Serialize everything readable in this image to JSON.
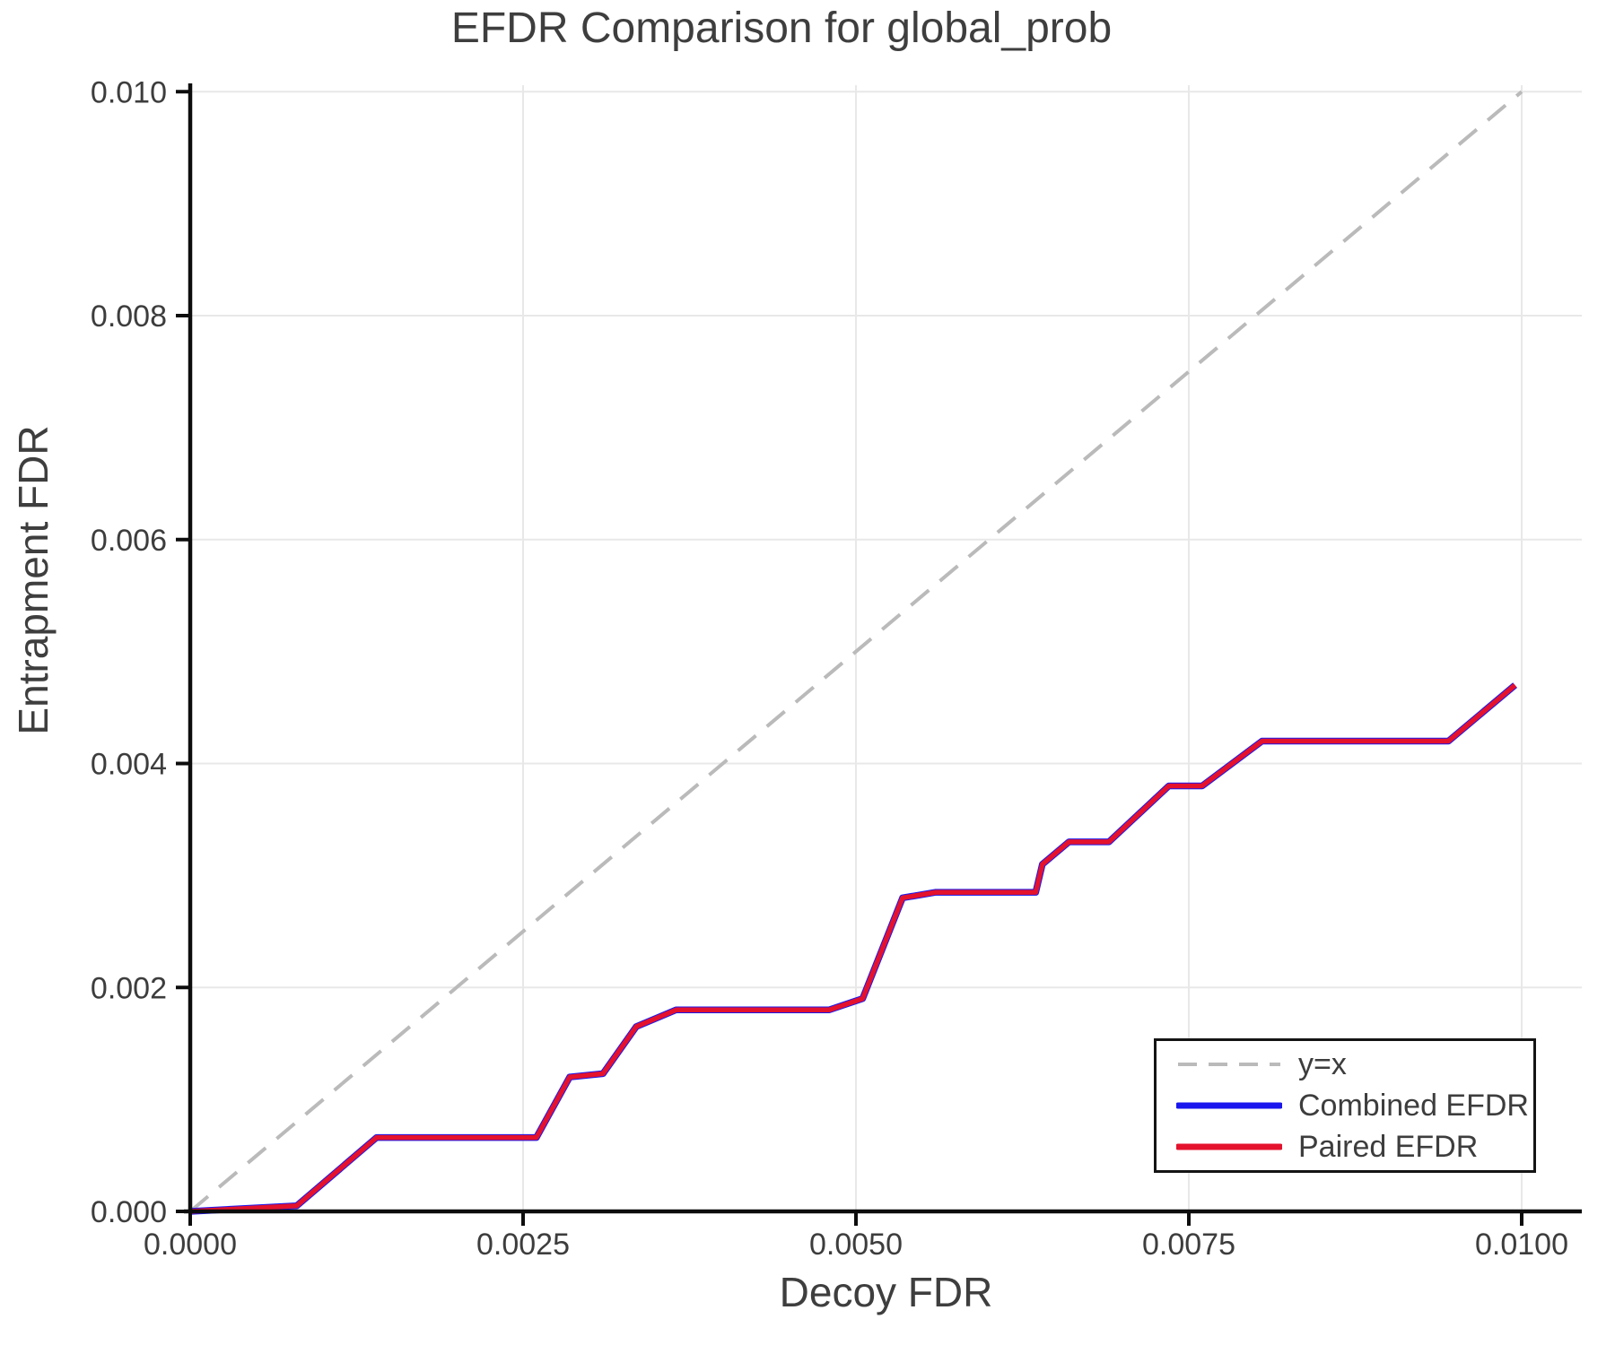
{
  "chart_data": {
    "type": "line",
    "title": "EFDR Comparison for global_prob",
    "xlabel": "Decoy FDR",
    "ylabel": "Entrapment FDR",
    "xlim": [
      0.0,
      0.0104
    ],
    "ylim": [
      0.0,
      0.0101
    ],
    "grid": true,
    "legend_position": "lower right",
    "x_ticks": [
      0.0,
      0.0025,
      0.005,
      0.0075,
      0.01
    ],
    "x_tick_labels": [
      "0.0000",
      "0.0025",
      "0.0050",
      "0.0075",
      "0.0100"
    ],
    "y_ticks": [
      0.0,
      0.002,
      0.004,
      0.006,
      0.008,
      0.01
    ],
    "y_tick_labels": [
      "0.000",
      "0.002",
      "0.004",
      "0.006",
      "0.008",
      "0.010"
    ],
    "colors": {
      "grid": "#e8e8e8",
      "axis": "#0d0d0d",
      "tick_text": "#3d3d3d",
      "reference_gray": "#bababa",
      "combined_blue": "#1a17ee",
      "paired_red": "#e4122d"
    },
    "series": [
      {
        "name": "y=x",
        "style": "dashed",
        "color": "#bababa",
        "x": [
          0.0,
          0.01
        ],
        "y": [
          0.0,
          0.01
        ]
      },
      {
        "name": "Combined EFDR",
        "style": "solid",
        "color": "#1a17ee",
        "x": [
          0.0,
          0.0008,
          0.0014,
          0.0026,
          0.00285,
          0.0031,
          0.00335,
          0.00365,
          0.0048,
          0.00505,
          0.00535,
          0.0056,
          0.00635,
          0.0064,
          0.0066,
          0.0069,
          0.00735,
          0.0076,
          0.00805,
          0.00945,
          0.00995
        ],
        "y": [
          0.0,
          5e-05,
          0.00066,
          0.00066,
          0.0012,
          0.00123,
          0.00165,
          0.0018,
          0.0018,
          0.0019,
          0.0028,
          0.00285,
          0.00285,
          0.0031,
          0.0033,
          0.0033,
          0.0038,
          0.0038,
          0.0042,
          0.0042,
          0.0047
        ]
      },
      {
        "name": "Paired EFDR",
        "style": "solid",
        "color": "#e4122d",
        "x": [
          0.0,
          0.0008,
          0.0014,
          0.0026,
          0.00285,
          0.0031,
          0.00335,
          0.00365,
          0.0048,
          0.00505,
          0.00535,
          0.0056,
          0.00635,
          0.0064,
          0.0066,
          0.0069,
          0.00735,
          0.0076,
          0.00805,
          0.00945,
          0.00995
        ],
        "y": [
          0.0,
          5e-05,
          0.00066,
          0.00066,
          0.0012,
          0.00123,
          0.00165,
          0.0018,
          0.0018,
          0.0019,
          0.0028,
          0.00285,
          0.00285,
          0.0031,
          0.0033,
          0.0033,
          0.0038,
          0.0038,
          0.0042,
          0.0042,
          0.0047
        ]
      }
    ]
  }
}
